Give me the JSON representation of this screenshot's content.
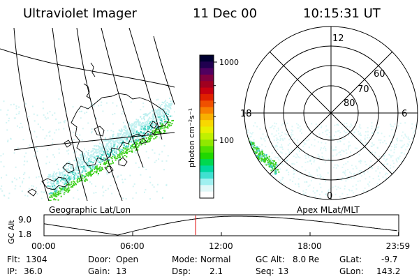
{
  "header": {
    "instrument": "Ultraviolet Imager",
    "date": "11 Dec 00",
    "time": "10:15:31 UT"
  },
  "left_panel": {
    "caption": "Geographic Lat/Lon"
  },
  "right_panel": {
    "caption": "Apex MLat/MLT",
    "mlt_labels": {
      "top": "12",
      "left": "18",
      "right": "6",
      "bottom": "0"
    },
    "lat_rings": [
      "60",
      "70",
      "80"
    ]
  },
  "colorbar": {
    "unit_label": "photon cm⁻²s⁻¹",
    "ticks": [
      {
        "label": "1000",
        "value": 1000
      },
      {
        "label": "100",
        "value": 100
      }
    ],
    "colors": [
      "#000030",
      "#200050",
      "#500060",
      "#800040",
      "#a00020",
      "#c80010",
      "#e02000",
      "#f05000",
      "#f88000",
      "#f8b000",
      "#f8d800",
      "#e8f000",
      "#c0f000",
      "#90e800",
      "#50e000",
      "#20d800",
      "#00d850",
      "#00d8a0",
      "#40e0d0",
      "#a0f0f0",
      "#e0f8f8",
      "#ffffff"
    ]
  },
  "altitude_strip": {
    "axis_label": "GC Alt",
    "y_ticks": [
      "9.0",
      "1.8"
    ],
    "x_ticks": [
      "00:00",
      "06:00",
      "12:00",
      "18:00",
      "23:59"
    ],
    "current_time_hours": 10.26,
    "orbit_minimum_hours": [
      5.0
    ],
    "orbit_maximum_hours": [
      13.0
    ]
  },
  "status": {
    "row1": [
      {
        "label": "Flt:",
        "value": "1304"
      },
      {
        "label": "Door:",
        "value": "Open"
      },
      {
        "label": "Mode:",
        "value": "Normal"
      },
      {
        "label": "GC Alt:",
        "value": "8.0 Re"
      },
      {
        "label": "GLat:",
        "value": "-9.7"
      }
    ],
    "row2": [
      {
        "label": "IP:",
        "value": "36.0"
      },
      {
        "label": "Gain:",
        "value": "13"
      },
      {
        "label": "Dsp:",
        "value": "2.1"
      },
      {
        "label": "Seq:",
        "value": "13"
      },
      {
        "label": "GLon:",
        "value": "143.2"
      }
    ]
  },
  "palette": {
    "cursor": "#e00000",
    "aurora_green": "#40d020",
    "aurora_cyan": "#40d0c0",
    "aurora_pale": "#c0f0f0"
  }
}
